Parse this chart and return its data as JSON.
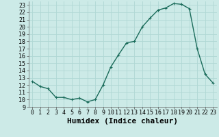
{
  "x": [
    0,
    1,
    2,
    3,
    4,
    5,
    6,
    7,
    8,
    9,
    10,
    11,
    12,
    13,
    14,
    15,
    16,
    17,
    18,
    19,
    20,
    21,
    22,
    23
  ],
  "y": [
    12.5,
    11.8,
    11.5,
    10.3,
    10.3,
    10.0,
    10.2,
    9.7,
    10.0,
    12.0,
    14.5,
    16.2,
    17.8,
    18.0,
    20.0,
    21.2,
    22.3,
    22.6,
    23.2,
    23.1,
    22.5,
    17.0,
    13.5,
    12.3
  ],
  "xlabel": "Humidex (Indice chaleur)",
  "xlim_min": -0.5,
  "xlim_max": 23.5,
  "ylim_min": 9,
  "ylim_max": 23.5,
  "xticks": [
    0,
    1,
    2,
    3,
    4,
    5,
    6,
    7,
    8,
    9,
    10,
    11,
    12,
    13,
    14,
    15,
    16,
    17,
    18,
    19,
    20,
    21,
    22,
    23
  ],
  "yticks": [
    9,
    10,
    11,
    12,
    13,
    14,
    15,
    16,
    17,
    18,
    19,
    20,
    21,
    22,
    23
  ],
  "line_color": "#1a6b5a",
  "marker": "+",
  "bg_color": "#cceae7",
  "grid_color": "#b0d8d4",
  "line_width": 1.0,
  "marker_size": 3,
  "tick_fontsize": 6,
  "xlabel_fontsize": 8
}
